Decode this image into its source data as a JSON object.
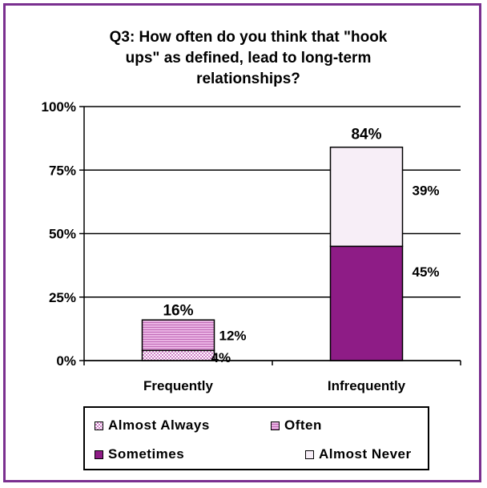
{
  "chart_data": {
    "type": "bar",
    "stacked": true,
    "title": "Q3: How often do you think that \"hook ups\" as defined, lead to long-term relationships?",
    "title_lines": [
      "Q3: How often do you think that \"hook",
      "ups\" as defined, lead to long-term",
      "relationships?"
    ],
    "categories": [
      "Frequently",
      "Infrequently"
    ],
    "ylim": [
      0,
      100
    ],
    "yticks": [
      "0%",
      "25%",
      "50%",
      "75%",
      "100%"
    ],
    "grid": true,
    "legend_position": "bottom",
    "series": [
      {
        "name": "Almost Always",
        "values": [
          4,
          0
        ],
        "color": "#f3d6ef",
        "pattern": "checker"
      },
      {
        "name": "Often",
        "values": [
          12,
          0
        ],
        "color": "#d98fd0",
        "pattern": "lines"
      },
      {
        "name": "Sometimes",
        "values": [
          0,
          45
        ],
        "color": "#8e1c86",
        "pattern": "solid"
      },
      {
        "name": "Almost Never",
        "values": [
          0,
          39
        ],
        "color": "#f7eef7",
        "pattern": "solid"
      }
    ],
    "totals": [
      16,
      84
    ],
    "data_labels": {
      "frequently_total": "16%",
      "frequently_often": "12%",
      "frequently_almost_always": "4%",
      "infrequently_total": "84%",
      "infrequently_almost_never": "39%",
      "infrequently_sometimes": "45%"
    }
  },
  "legend": {
    "items": [
      "Almost Always",
      "Often",
      "Sometimes",
      "Almost Never"
    ]
  }
}
